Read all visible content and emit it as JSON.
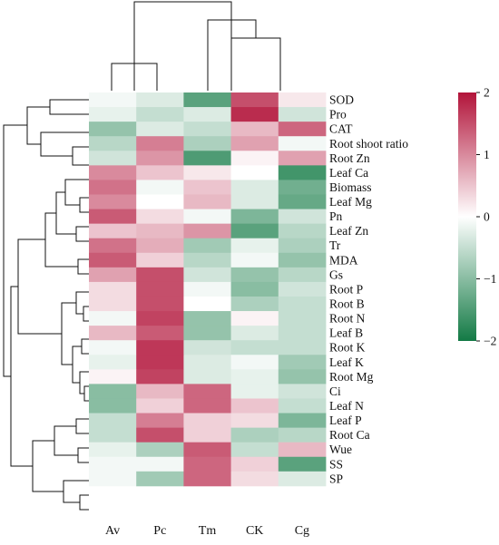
{
  "chart_data": {
    "type": "heatmap",
    "columns": [
      "Av",
      "Pc",
      "Tm",
      "CK",
      "Cg"
    ],
    "rows": [
      "SOD",
      "Pro",
      "CAT",
      "Root shoot ratio",
      "Root Zn",
      "Leaf Ca",
      "Biomass",
      "Leaf Mg",
      "Pn",
      "Leaf Zn",
      "Tr",
      "MDA",
      "Gs",
      "Root P",
      "Root B",
      "Root N",
      "Leaf B",
      "Root K",
      "Leaf K",
      "Root Mg",
      "Ci",
      "Leaf N",
      "Leaf P",
      "Root Ca",
      "Wue",
      "SS",
      "SP"
    ],
    "values": [
      [
        -0.1,
        -0.3,
        -1.4,
        1.5,
        0.2
      ],
      [
        -0.2,
        -0.5,
        -0.3,
        1.8,
        -0.4
      ],
      [
        -0.9,
        -0.3,
        -0.5,
        0.6,
        1.3
      ],
      [
        -0.6,
        1.1,
        -0.7,
        0.8,
        -0.1
      ],
      [
        -0.4,
        0.9,
        -1.5,
        0.1,
        0.8
      ],
      [
        1.0,
        0.5,
        0.2,
        0.0,
        -1.6
      ],
      [
        1.2,
        -0.1,
        0.5,
        -0.3,
        -1.2
      ],
      [
        1.0,
        0.0,
        0.6,
        -0.3,
        -1.3
      ],
      [
        1.4,
        0.3,
        -0.1,
        -1.1,
        -0.4
      ],
      [
        0.5,
        0.6,
        0.9,
        -1.4,
        -0.6
      ],
      [
        1.2,
        0.7,
        -0.8,
        -0.2,
        -0.7
      ],
      [
        1.4,
        0.4,
        -0.6,
        -0.1,
        -0.9
      ],
      [
        0.8,
        1.5,
        -0.4,
        -0.9,
        -0.6
      ],
      [
        0.3,
        1.5,
        -0.1,
        -1.0,
        -0.4
      ],
      [
        0.3,
        1.5,
        0.0,
        -0.7,
        -0.5
      ],
      [
        -0.1,
        1.6,
        -0.9,
        0.1,
        -0.5
      ],
      [
        0.6,
        1.4,
        -0.9,
        -0.3,
        -0.5
      ],
      [
        -0.1,
        1.7,
        -0.4,
        -0.5,
        -0.5
      ],
      [
        -0.2,
        1.7,
        -0.3,
        -0.1,
        -0.8
      ],
      [
        0.1,
        1.6,
        -0.3,
        -0.2,
        -0.9
      ],
      [
        -1.0,
        0.6,
        1.3,
        -0.2,
        -0.4
      ],
      [
        -1.0,
        0.4,
        1.3,
        0.5,
        -0.5
      ],
      [
        -0.5,
        1.1,
        0.4,
        0.3,
        -1.1
      ],
      [
        -0.5,
        1.5,
        0.4,
        -0.7,
        -0.6
      ],
      [
        -0.2,
        -0.7,
        1.4,
        -0.5,
        0.6
      ],
      [
        -0.1,
        -0.1,
        1.3,
        0.4,
        -1.4
      ],
      [
        -0.1,
        -0.8,
        1.3,
        0.3,
        -0.3
      ]
    ],
    "colorbar": {
      "range": [
        -2,
        2
      ],
      "ticks": [
        "2",
        "1",
        "0",
        "−1",
        "−2"
      ],
      "colors": [
        "#137a45",
        "#ffffff",
        "#b2143a"
      ]
    },
    "dendrogram_rows": true,
    "dendrogram_columns": true,
    "title": "",
    "xlabel": "",
    "ylabel": ""
  }
}
